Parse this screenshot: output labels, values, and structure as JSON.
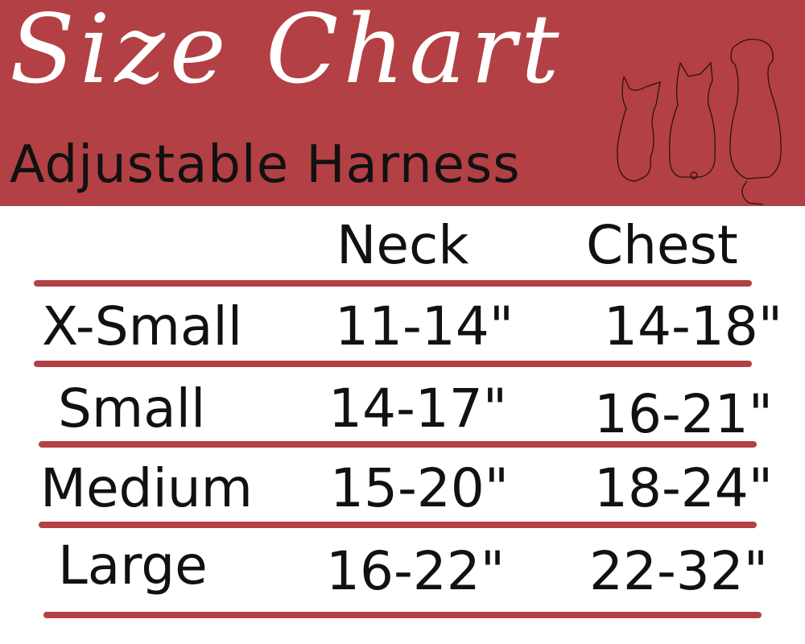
{
  "header": {
    "title": "Size Chart",
    "subtitle": "Adjustable Harness",
    "accent_color": "#b34044",
    "illustration": "cat-cat-dog-outline-icon"
  },
  "table": {
    "columns": [
      "",
      "Neck",
      "Chest"
    ],
    "rows": [
      {
        "size": "X-Small",
        "neck": "11-14\"",
        "chest": "14-18\""
      },
      {
        "size": "Small",
        "neck": "14-17\"",
        "chest": "16-21\""
      },
      {
        "size": "Medium",
        "neck": "15-20\"",
        "chest": "18-24\""
      },
      {
        "size": "Large",
        "neck": "16-22\"",
        "chest": "22-32\""
      }
    ]
  }
}
